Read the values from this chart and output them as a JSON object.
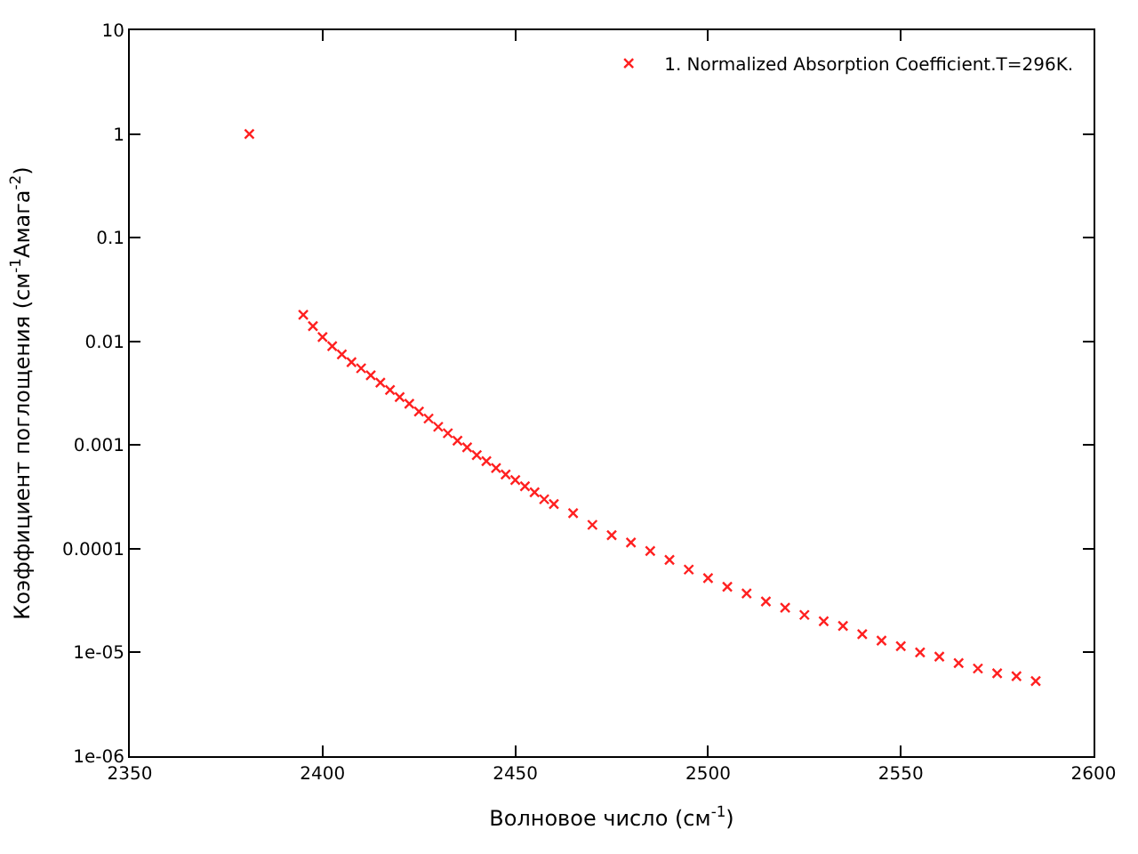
{
  "chart_data": {
    "type": "scatter",
    "xlabel": "Волновое число (см$^{-1}$)",
    "ylabel": "Коэффициент поглощения (см$^{-1}$Амага$^{-2}$)",
    "log": "y",
    "marker": "cross",
    "legend": "top right",
    "grid": false,
    "xlim": [
      2350,
      2600
    ],
    "xticks": [
      2350,
      2400,
      2450,
      2500,
      2550,
      2600
    ],
    "ylim": [
      1e-06,
      10
    ],
    "yticks": [
      {
        "value": 1e-06,
        "label": "1e-06"
      },
      {
        "value": 1e-05,
        "label": "1e-05"
      },
      0.0001,
      0.001,
      0.01,
      0.1,
      1,
      10
    ],
    "series": [
      {
        "name": "1. Normalized Absorption Coefficient.T=296K.",
        "color": "#ff2020",
        "x": [
          2381,
          2395,
          2397.5,
          2400,
          2402.5,
          2405,
          2407.5,
          2410,
          2412.5,
          2415,
          2417.5,
          2420,
          2422.5,
          2425,
          2427.5,
          2430,
          2432.5,
          2435,
          2437.5,
          2440,
          2442.5,
          2445,
          2447.5,
          2450,
          2452.5,
          2455,
          2457.5,
          2460,
          2465,
          2470,
          2475,
          2480,
          2485,
          2490,
          2495,
          2500,
          2505,
          2510,
          2515,
          2520,
          2525,
          2530,
          2535,
          2540,
          2545,
          2550,
          2555,
          2560,
          2565,
          2570,
          2575,
          2580,
          2585
        ],
        "values": [
          1.0,
          0.018,
          0.014,
          0.011,
          0.009,
          0.0075,
          0.0063,
          0.0055,
          0.0047,
          0.004,
          0.0034,
          0.0029,
          0.0025,
          0.0021,
          0.0018,
          0.0015,
          0.0013,
          0.0011,
          0.00095,
          0.0008,
          0.0007,
          0.0006,
          0.00052,
          0.00046,
          0.0004,
          0.00035,
          0.0003,
          0.00027,
          0.00022,
          0.00017,
          0.000135,
          0.000115,
          9.5e-05,
          7.8e-05,
          6.3e-05,
          5.2e-05,
          4.3e-05,
          3.7e-05,
          3.1e-05,
          2.7e-05,
          2.3e-05,
          2e-05,
          1.8e-05,
          1.5e-05,
          1.3e-05,
          1.15e-05,
          1e-05,
          9.1e-06,
          7.9e-06,
          7e-06,
          6.3e-06,
          5.9e-06,
          5.3e-06
        ]
      }
    ]
  }
}
